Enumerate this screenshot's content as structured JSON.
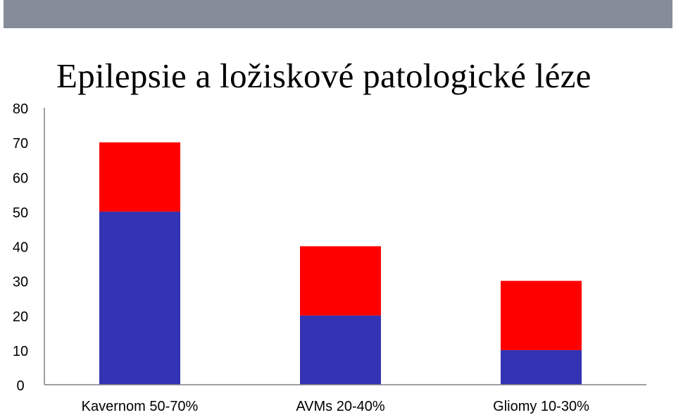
{
  "title": "Epilepsie a ložiskové patologické léze",
  "colors": {
    "top_bar": "#868c99",
    "series_low": "#3333b3",
    "series_high": "#ff0000",
    "axis": "#808080"
  },
  "chart_data": {
    "type": "bar",
    "stacked": true,
    "title": "Epilepsie a ložiskové patologické léze",
    "xlabel": "",
    "ylabel": "",
    "categories": [
      "Kavernom 50-70%",
      "AVMs 20-40%",
      "Gliomy 10-30%"
    ],
    "series": [
      {
        "color": "#3333b3",
        "values": [
          50,
          20,
          10
        ]
      },
      {
        "color": "#ff0000",
        "values": [
          20,
          20,
          20
        ]
      }
    ],
    "ylim": [
      0,
      80
    ],
    "yticks": [
      0,
      10,
      20,
      30,
      40,
      50,
      60,
      70,
      80
    ],
    "grid": false,
    "legend": "none"
  }
}
